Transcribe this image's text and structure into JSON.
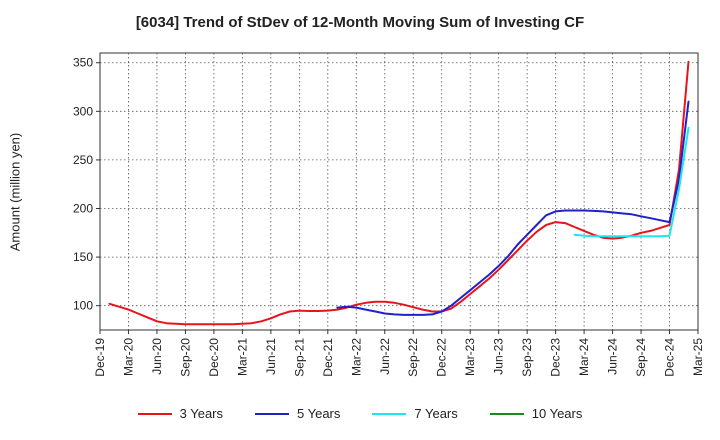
{
  "chart_data": {
    "type": "line",
    "title": "[6034]  Trend of StDev of 12-Month Moving Sum of Investing CF",
    "ylabel": "Amount (million yen)",
    "xlabel": "",
    "ylim": [
      75,
      360
    ],
    "yticks": [
      100,
      150,
      200,
      250,
      300,
      350
    ],
    "x_tick_labels": [
      "Dec-19",
      "Mar-20",
      "Jun-20",
      "Sep-20",
      "Dec-20",
      "Mar-21",
      "Jun-21",
      "Sep-21",
      "Dec-21",
      "Mar-22",
      "Jun-22",
      "Sep-22",
      "Dec-22",
      "Mar-23",
      "Jun-23",
      "Sep-23",
      "Dec-23",
      "Mar-24",
      "Jun-24",
      "Sep-24",
      "Dec-24",
      "Mar-25"
    ],
    "grid": true,
    "legend_position": "bottom",
    "series": [
      {
        "name": "3 Years",
        "color": "#e8141c",
        "x": [
          "Jan-20",
          "Feb-20",
          "Mar-20",
          "Apr-20",
          "May-20",
          "Jun-20",
          "Jul-20",
          "Aug-20",
          "Sep-20",
          "Oct-20",
          "Nov-20",
          "Dec-20",
          "Jan-21",
          "Feb-21",
          "Mar-21",
          "Apr-21",
          "May-21",
          "Jun-21",
          "Jul-21",
          "Aug-21",
          "Sep-21",
          "Oct-21",
          "Nov-21",
          "Dec-21",
          "Jan-22",
          "Feb-22",
          "Mar-22",
          "Apr-22",
          "May-22",
          "Jun-22",
          "Jul-22",
          "Aug-22",
          "Sep-22",
          "Oct-22",
          "Nov-22",
          "Dec-22",
          "Jan-23",
          "Feb-23",
          "Mar-23",
          "Apr-23",
          "May-23",
          "Jun-23",
          "Jul-23",
          "Aug-23",
          "Sep-23",
          "Oct-23",
          "Nov-23",
          "Dec-23",
          "Jan-24",
          "Feb-24",
          "Mar-24",
          "Apr-24",
          "May-24",
          "Jun-24",
          "Jul-24",
          "Aug-24",
          "Sep-24",
          "Oct-24",
          "Nov-24",
          "Dec-24"
        ],
        "values": [
          102,
          99,
          96,
          92,
          88,
          84,
          82,
          81.5,
          81,
          81,
          81,
          81,
          81,
          81,
          81.5,
          82,
          84,
          87,
          91,
          94,
          95,
          94.5,
          94.5,
          95,
          96,
          98,
          101,
          103,
          104,
          104,
          103,
          101,
          98.5,
          96,
          94,
          94,
          97,
          104,
          112,
          120,
          128,
          137,
          147,
          157,
          167,
          176,
          183,
          186,
          185,
          181,
          177,
          173,
          170,
          169,
          170,
          172,
          175,
          177,
          180,
          183
        ]
      },
      {
        "name": "5 Years",
        "color": "#1f22c8",
        "x": [
          "Jan-22",
          "Feb-22",
          "Mar-22",
          "Apr-22",
          "May-22",
          "Jun-22",
          "Jul-22",
          "Aug-22",
          "Sep-22",
          "Oct-22",
          "Nov-22",
          "Dec-22",
          "Jan-23",
          "Feb-23",
          "Mar-23",
          "Apr-23",
          "May-23",
          "Jun-23",
          "Jul-23",
          "Aug-23",
          "Sep-23",
          "Oct-23",
          "Nov-23",
          "Dec-23",
          "Jan-24",
          "Feb-24",
          "Mar-24",
          "Apr-24",
          "May-24",
          "Jun-24",
          "Jul-24",
          "Aug-24",
          "Sep-24",
          "Oct-24",
          "Nov-24",
          "Dec-24"
        ],
        "values": [
          98,
          99,
          98,
          96,
          94,
          92,
          91,
          90.5,
          90.5,
          90.5,
          91,
          94,
          100,
          108,
          116,
          124,
          132,
          141,
          151,
          163,
          173,
          183,
          193,
          197,
          198,
          198,
          198,
          197.5,
          197,
          196,
          195,
          194,
          192,
          190,
          188,
          186
        ]
      },
      {
        "name": "7 Years",
        "color": "#1ee6f0",
        "x": [
          "Feb-24",
          "Mar-24",
          "Apr-24",
          "May-24",
          "Jun-24",
          "Jul-24",
          "Aug-24",
          "Sep-24",
          "Oct-24",
          "Nov-24",
          "Dec-24"
        ],
        "values": [
          173,
          172,
          171.5,
          171.5,
          171.5,
          171.5,
          171.5,
          171.5,
          171.5,
          171.5,
          172
        ]
      },
      {
        "name": "10 Years",
        "color": "#1a8a1a",
        "x": [],
        "values": []
      }
    ],
    "tail_extensions": {
      "3 Years": {
        "x": [
          "Jan-25",
          "Feb-25"
        ],
        "values": [
          240,
          351
        ]
      },
      "5 Years": {
        "x": [
          "Jan-25",
          "Feb-25"
        ],
        "values": [
          230,
          310
        ]
      },
      "7 Years": {
        "x": [
          "Jan-25",
          "Feb-25"
        ],
        "values": [
          220,
          283
        ]
      }
    }
  }
}
